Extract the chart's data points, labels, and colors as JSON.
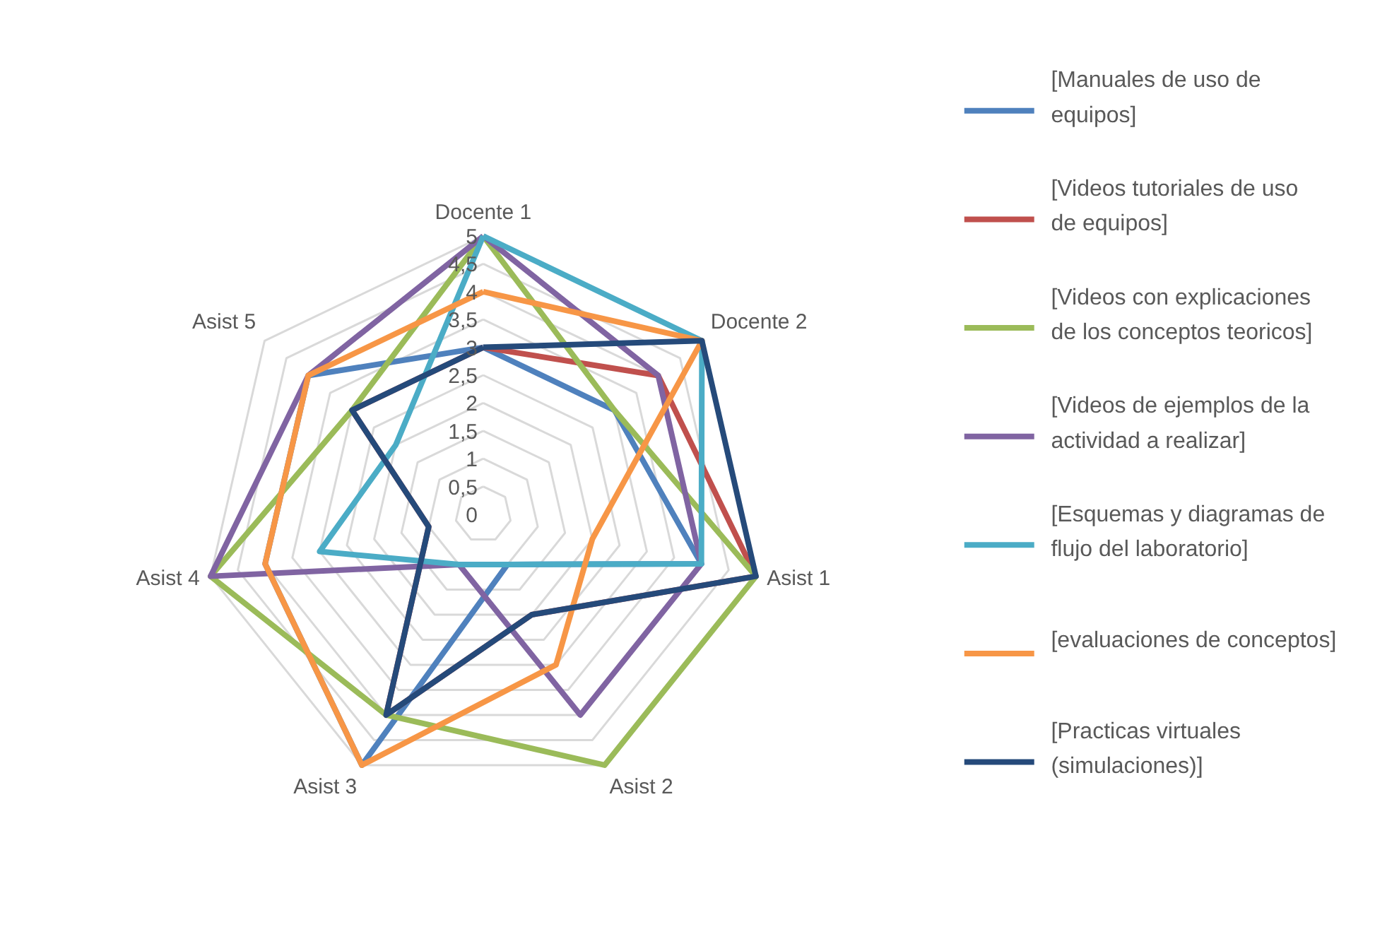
{
  "chart_data": {
    "type": "radar",
    "categories": [
      "Docente 1",
      "Docente 2",
      "Asist 1",
      "Asist 2",
      "Asist 3",
      "Asist 4",
      "Asist 5"
    ],
    "ylim": [
      0,
      5
    ],
    "yticks": [
      0,
      {
        "value": 0.5,
        "label": "0,5"
      },
      1,
      {
        "value": 1.5,
        "label": "1,5"
      },
      2,
      {
        "value": 2.5,
        "label": "2,5"
      },
      3,
      {
        "value": 3.5,
        "label": "3,5"
      },
      4,
      {
        "value": 4.5,
        "label": "4,5"
      },
      5
    ],
    "grid": true,
    "legend": "right",
    "line_style": "solid",
    "marker": "none",
    "series": [
      {
        "name": "[Manuales de uso de equipos]",
        "color": "#4f81bd",
        "values": [
          3,
          3,
          4,
          1,
          5,
          4,
          4
        ]
      },
      {
        "name": "[Videos tutoriales de uso de equipos]",
        "color": "#c0504d",
        "values": [
          3,
          4,
          5,
          2,
          4,
          1,
          3
        ]
      },
      {
        "name": "[Videos con explicaciones de los conceptos teoricos]",
        "color": "#9bbb59",
        "values": [
          5,
          3,
          5,
          5,
          4,
          5,
          3
        ]
      },
      {
        "name": "[Videos de ejemplos de la actividad a realizar]",
        "color": "#8064a2",
        "values": [
          5,
          4,
          4,
          4,
          1,
          5,
          4
        ]
      },
      {
        "name": "[Esquemas y diagramas de flujo del laboratorio]",
        "color": "#4bacc6",
        "values": [
          5,
          5,
          4,
          1,
          1,
          3,
          2
        ]
      },
      {
        "name": "[evaluaciones de conceptos]",
        "color": "#f79646",
        "values": [
          4,
          5,
          2,
          3,
          5,
          4,
          4
        ]
      },
      {
        "name": "[Practicas virtuales (simulaciones)]",
        "color": "#254a7a",
        "values": [
          3,
          5,
          5,
          2,
          4,
          1,
          3
        ]
      }
    ]
  }
}
